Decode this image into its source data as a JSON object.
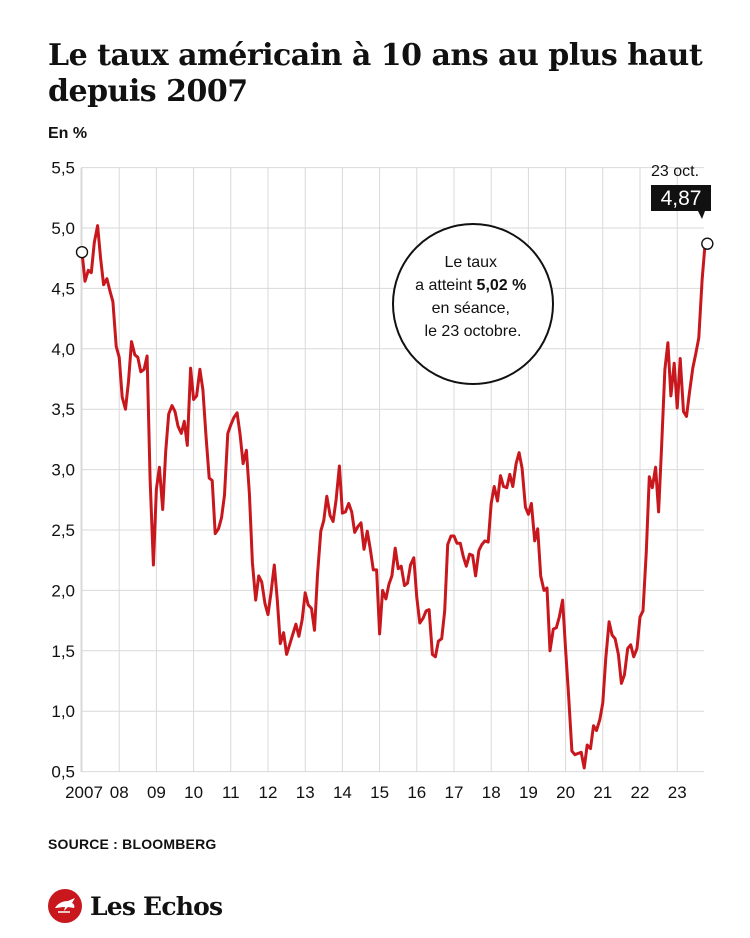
{
  "header": {
    "title": "Le taux américain à 10 ans au plus haut depuis 2007",
    "unit": "En %"
  },
  "footer": {
    "source": "SOURCE : BLOOMBERG",
    "logo_text": "Les Echos"
  },
  "colors": {
    "line": "#c8171d",
    "grid": "#d9d9d9",
    "text": "#111111",
    "badge_bg": "#111111",
    "badge_text": "#ffffff",
    "logo_red": "#c8171d"
  },
  "chart_data": {
    "type": "line",
    "title": "Le taux américain à 10 ans au plus haut depuis 2007",
    "ylabel": "En %",
    "xlabel": "",
    "ylim": [
      0.45,
      5.5
    ],
    "xlim": [
      2007.0,
      2023.83
    ],
    "yticks": [
      {
        "value": 5.5,
        "label": "5,5"
      },
      {
        "value": 5.0,
        "label": "5,0"
      },
      {
        "value": 4.5,
        "label": "4,5"
      },
      {
        "value": 4.0,
        "label": "4,0"
      },
      {
        "value": 3.5,
        "label": "3,5"
      },
      {
        "value": 3.0,
        "label": "3,0"
      },
      {
        "value": 2.5,
        "label": "2,5"
      },
      {
        "value": 2.0,
        "label": "2,0"
      },
      {
        "value": 1.5,
        "label": "1,5"
      },
      {
        "value": 1.0,
        "label": "1,0"
      },
      {
        "value": 0.5,
        "label": "0,5"
      }
    ],
    "xticks": [
      {
        "value": 2007,
        "label": "2007"
      },
      {
        "value": 2008,
        "label": "08"
      },
      {
        "value": 2009,
        "label": "09"
      },
      {
        "value": 2010,
        "label": "10"
      },
      {
        "value": 2011,
        "label": "11"
      },
      {
        "value": 2012,
        "label": "12"
      },
      {
        "value": 2013,
        "label": "13"
      },
      {
        "value": 2014,
        "label": "14"
      },
      {
        "value": 2015,
        "label": "15"
      },
      {
        "value": 2016,
        "label": "16"
      },
      {
        "value": 2017,
        "label": "17"
      },
      {
        "value": 2018,
        "label": "18"
      },
      {
        "value": 2019,
        "label": "19"
      },
      {
        "value": 2020,
        "label": "20"
      },
      {
        "value": 2021,
        "label": "21"
      },
      {
        "value": 2022,
        "label": "22"
      },
      {
        "value": 2023,
        "label": "23"
      }
    ],
    "grid": true,
    "series": [
      {
        "points": [
          [
            2007.0,
            4.8
          ],
          [
            2007.08,
            4.56
          ],
          [
            2007.17,
            4.65
          ],
          [
            2007.25,
            4.63
          ],
          [
            2007.33,
            4.88
          ],
          [
            2007.42,
            5.02
          ],
          [
            2007.5,
            4.75
          ],
          [
            2007.58,
            4.53
          ],
          [
            2007.67,
            4.58
          ],
          [
            2007.75,
            4.48
          ],
          [
            2007.83,
            4.39
          ],
          [
            2007.92,
            4.02
          ],
          [
            2008.0,
            3.93
          ],
          [
            2008.08,
            3.6
          ],
          [
            2008.17,
            3.5
          ],
          [
            2008.25,
            3.73
          ],
          [
            2008.33,
            4.06
          ],
          [
            2008.42,
            3.95
          ],
          [
            2008.5,
            3.93
          ],
          [
            2008.58,
            3.81
          ],
          [
            2008.67,
            3.83
          ],
          [
            2008.75,
            3.94
          ],
          [
            2008.83,
            2.92
          ],
          [
            2008.92,
            2.21
          ],
          [
            2009.0,
            2.84
          ],
          [
            2009.08,
            3.02
          ],
          [
            2009.17,
            2.67
          ],
          [
            2009.25,
            3.15
          ],
          [
            2009.33,
            3.46
          ],
          [
            2009.42,
            3.53
          ],
          [
            2009.5,
            3.48
          ],
          [
            2009.58,
            3.36
          ],
          [
            2009.67,
            3.3
          ],
          [
            2009.75,
            3.4
          ],
          [
            2009.83,
            3.2
          ],
          [
            2009.92,
            3.84
          ],
          [
            2010.0,
            3.58
          ],
          [
            2010.08,
            3.61
          ],
          [
            2010.17,
            3.83
          ],
          [
            2010.25,
            3.66
          ],
          [
            2010.33,
            3.29
          ],
          [
            2010.42,
            2.93
          ],
          [
            2010.5,
            2.91
          ],
          [
            2010.58,
            2.47
          ],
          [
            2010.67,
            2.51
          ],
          [
            2010.75,
            2.6
          ],
          [
            2010.83,
            2.79
          ],
          [
            2010.92,
            3.3
          ],
          [
            2011.0,
            3.37
          ],
          [
            2011.08,
            3.43
          ],
          [
            2011.17,
            3.47
          ],
          [
            2011.25,
            3.29
          ],
          [
            2011.33,
            3.05
          ],
          [
            2011.42,
            3.16
          ],
          [
            2011.5,
            2.8
          ],
          [
            2011.58,
            2.23
          ],
          [
            2011.67,
            1.92
          ],
          [
            2011.75,
            2.12
          ],
          [
            2011.83,
            2.07
          ],
          [
            2011.92,
            1.89
          ],
          [
            2012.0,
            1.8
          ],
          [
            2012.08,
            1.98
          ],
          [
            2012.17,
            2.21
          ],
          [
            2012.25,
            1.92
          ],
          [
            2012.33,
            1.56
          ],
          [
            2012.42,
            1.65
          ],
          [
            2012.5,
            1.47
          ],
          [
            2012.58,
            1.55
          ],
          [
            2012.67,
            1.64
          ],
          [
            2012.75,
            1.72
          ],
          [
            2012.83,
            1.62
          ],
          [
            2012.92,
            1.76
          ],
          [
            2013.0,
            1.98
          ],
          [
            2013.08,
            1.88
          ],
          [
            2013.17,
            1.85
          ],
          [
            2013.25,
            1.67
          ],
          [
            2013.33,
            2.13
          ],
          [
            2013.42,
            2.49
          ],
          [
            2013.5,
            2.58
          ],
          [
            2013.58,
            2.78
          ],
          [
            2013.67,
            2.62
          ],
          [
            2013.75,
            2.57
          ],
          [
            2013.83,
            2.75
          ],
          [
            2013.92,
            3.03
          ],
          [
            2014.0,
            2.64
          ],
          [
            2014.08,
            2.65
          ],
          [
            2014.17,
            2.72
          ],
          [
            2014.25,
            2.65
          ],
          [
            2014.33,
            2.48
          ],
          [
            2014.42,
            2.53
          ],
          [
            2014.5,
            2.56
          ],
          [
            2014.58,
            2.34
          ],
          [
            2014.67,
            2.49
          ],
          [
            2014.75,
            2.34
          ],
          [
            2014.83,
            2.17
          ],
          [
            2014.92,
            2.17
          ],
          [
            2015.0,
            1.64
          ],
          [
            2015.08,
            2.0
          ],
          [
            2015.17,
            1.93
          ],
          [
            2015.25,
            2.05
          ],
          [
            2015.33,
            2.12
          ],
          [
            2015.42,
            2.35
          ],
          [
            2015.5,
            2.18
          ],
          [
            2015.58,
            2.2
          ],
          [
            2015.67,
            2.04
          ],
          [
            2015.75,
            2.06
          ],
          [
            2015.83,
            2.21
          ],
          [
            2015.92,
            2.27
          ],
          [
            2016.0,
            1.94
          ],
          [
            2016.08,
            1.73
          ],
          [
            2016.17,
            1.77
          ],
          [
            2016.25,
            1.83
          ],
          [
            2016.33,
            1.84
          ],
          [
            2016.42,
            1.47
          ],
          [
            2016.5,
            1.45
          ],
          [
            2016.58,
            1.58
          ],
          [
            2016.67,
            1.6
          ],
          [
            2016.75,
            1.83
          ],
          [
            2016.83,
            2.38
          ],
          [
            2016.92,
            2.45
          ],
          [
            2017.0,
            2.45
          ],
          [
            2017.08,
            2.39
          ],
          [
            2017.17,
            2.39
          ],
          [
            2017.25,
            2.28
          ],
          [
            2017.33,
            2.2
          ],
          [
            2017.42,
            2.3
          ],
          [
            2017.5,
            2.29
          ],
          [
            2017.58,
            2.12
          ],
          [
            2017.67,
            2.33
          ],
          [
            2017.75,
            2.38
          ],
          [
            2017.83,
            2.41
          ],
          [
            2017.92,
            2.4
          ],
          [
            2018.0,
            2.72
          ],
          [
            2018.08,
            2.86
          ],
          [
            2018.17,
            2.74
          ],
          [
            2018.25,
            2.95
          ],
          [
            2018.33,
            2.86
          ],
          [
            2018.42,
            2.85
          ],
          [
            2018.5,
            2.96
          ],
          [
            2018.58,
            2.86
          ],
          [
            2018.67,
            3.05
          ],
          [
            2018.75,
            3.14
          ],
          [
            2018.83,
            3.01
          ],
          [
            2018.92,
            2.69
          ],
          [
            2019.0,
            2.63
          ],
          [
            2019.08,
            2.72
          ],
          [
            2019.17,
            2.41
          ],
          [
            2019.25,
            2.51
          ],
          [
            2019.33,
            2.12
          ],
          [
            2019.42,
            2.0
          ],
          [
            2019.5,
            2.02
          ],
          [
            2019.58,
            1.5
          ],
          [
            2019.67,
            1.68
          ],
          [
            2019.75,
            1.69
          ],
          [
            2019.83,
            1.78
          ],
          [
            2019.92,
            1.92
          ],
          [
            2020.0,
            1.51
          ],
          [
            2020.08,
            1.13
          ],
          [
            2020.17,
            0.67
          ],
          [
            2020.25,
            0.64
          ],
          [
            2020.33,
            0.65
          ],
          [
            2020.42,
            0.66
          ],
          [
            2020.5,
            0.53
          ],
          [
            2020.58,
            0.72
          ],
          [
            2020.67,
            0.69
          ],
          [
            2020.75,
            0.88
          ],
          [
            2020.83,
            0.84
          ],
          [
            2020.92,
            0.93
          ],
          [
            2021.0,
            1.07
          ],
          [
            2021.08,
            1.44
          ],
          [
            2021.17,
            1.74
          ],
          [
            2021.25,
            1.63
          ],
          [
            2021.33,
            1.6
          ],
          [
            2021.42,
            1.47
          ],
          [
            2021.5,
            1.23
          ],
          [
            2021.58,
            1.3
          ],
          [
            2021.67,
            1.52
          ],
          [
            2021.75,
            1.55
          ],
          [
            2021.83,
            1.45
          ],
          [
            2021.92,
            1.52
          ],
          [
            2022.0,
            1.78
          ],
          [
            2022.08,
            1.83
          ],
          [
            2022.17,
            2.32
          ],
          [
            2022.25,
            2.94
          ],
          [
            2022.33,
            2.85
          ],
          [
            2022.42,
            3.02
          ],
          [
            2022.5,
            2.65
          ],
          [
            2022.58,
            3.19
          ],
          [
            2022.67,
            3.83
          ],
          [
            2022.75,
            4.05
          ],
          [
            2022.83,
            3.61
          ],
          [
            2022.92,
            3.88
          ],
          [
            2023.0,
            3.51
          ],
          [
            2023.08,
            3.92
          ],
          [
            2023.17,
            3.48
          ],
          [
            2023.25,
            3.44
          ],
          [
            2023.33,
            3.64
          ],
          [
            2023.42,
            3.84
          ],
          [
            2023.5,
            3.96
          ],
          [
            2023.58,
            4.09
          ],
          [
            2023.67,
            4.57
          ],
          [
            2023.75,
            4.87
          ],
          [
            2023.81,
            4.87
          ]
        ]
      }
    ],
    "start_point": {
      "x": 2007.0,
      "y": 4.8
    },
    "end_point": {
      "x": 2023.81,
      "y": 4.87,
      "date_label": "23 oct.",
      "value_label": "4,87"
    },
    "annotation": {
      "lines": [
        {
          "text": "Le taux"
        },
        {
          "text": "a atteint ",
          "bold": "5,02 %"
        },
        {
          "text": "en séance,"
        },
        {
          "text": "le 23 octobre."
        }
      ]
    }
  }
}
